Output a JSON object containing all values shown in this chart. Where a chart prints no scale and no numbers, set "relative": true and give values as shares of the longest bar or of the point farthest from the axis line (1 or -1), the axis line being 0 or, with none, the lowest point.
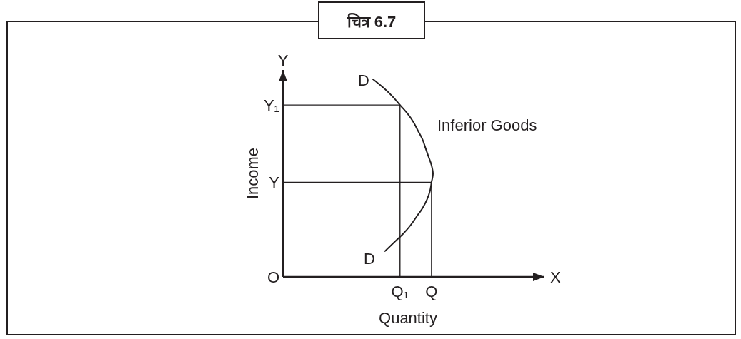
{
  "chart_data": {
    "type": "line",
    "orientation": "horizontal",
    "relative": true,
    "title": "चित्र 6.7",
    "xlabel": "Quantity",
    "ylabel": "Income",
    "categories": [
      null,
      null,
      null,
      "Y₁",
      null,
      null,
      null,
      null,
      null,
      null,
      null,
      null,
      "Y",
      null,
      null,
      null,
      null,
      null,
      null,
      null,
      null,
      null,
      null,
      "O"
    ],
    "series": [
      {
        "color": "#231f20",
        "values": [
          0.6,
          0.67,
          0.73,
          0.78,
          0.83,
          0.87,
          0.9,
          0.93,
          0.95,
          0.97,
          0.99,
          1,
          0.99,
          0.98,
          0.96,
          0.93,
          0.89,
          0.85,
          0.8,
          0.74,
          0.68,
          null,
          null,
          null
        ]
      },
      {
        "type": "step",
        "color": "#231f20",
        "values": [
          null,
          null,
          null,
          0,
          0.78,
          0.78,
          0.78,
          0.78,
          0.78,
          0.78,
          0.78,
          0.78,
          0.78,
          0.78,
          0.78,
          0.78,
          0.78,
          0.78,
          0.78,
          0.78,
          0.78,
          0.78,
          0.78,
          0.78
        ]
      },
      {
        "type": "step",
        "color": "#231f20",
        "values": [
          null,
          null,
          null,
          null,
          null,
          null,
          null,
          null,
          null,
          null,
          null,
          null,
          0,
          0.99,
          0.99,
          0.99,
          0.99,
          0.99,
          0.99,
          0.99,
          0.99,
          0.99,
          0.99,
          0.99
        ]
      }
    ],
    "annotations": [
      "D",
      "Inferior Goods",
      "D",
      {
        "text": "Q₁",
        "x": 0.78,
        "y": "O"
      },
      {
        "text": "Q",
        "x": 0.99,
        "y": "O"
      },
      "X",
      "Y"
    ]
  }
}
